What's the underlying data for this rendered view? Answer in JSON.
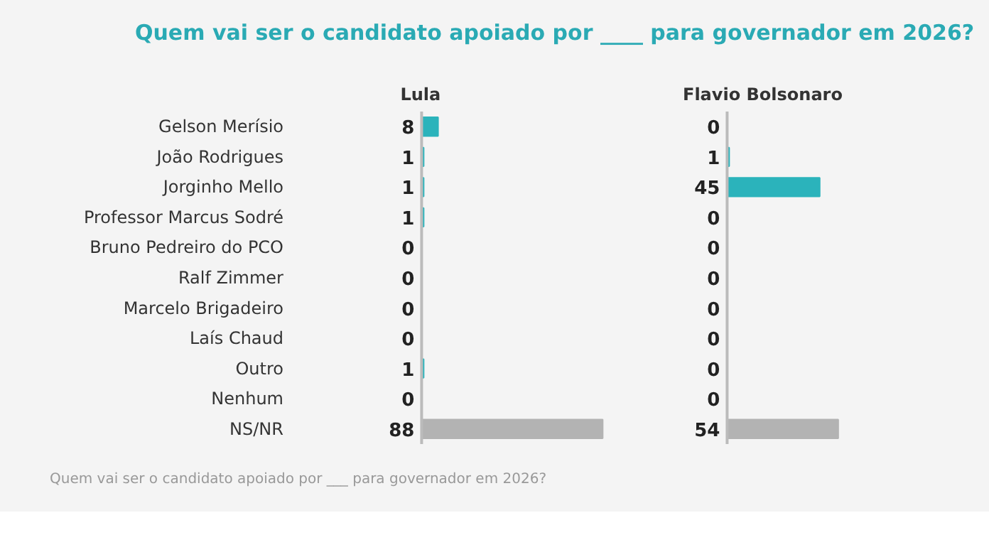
{
  "chart_data": [
    {
      "type": "bar",
      "orientation": "horizontal",
      "title": "Lula",
      "tick_labels": "y",
      "data_labels": true,
      "annotations": [
        "Quem vai ser o candidato apoiado por ____ para governador em 2026?",
        "Quem vai ser o candidato apoiado por ___ para governador em 2026?"
      ],
      "categories": [
        "Gelson Merísio",
        "João Rodrigues",
        "Jorginho Mello",
        "Professor Marcus Sodré",
        "Bruno Pedreiro do PCO",
        "Ralf Zimmer",
        "Marcelo Brigadeiro",
        "Laís Chaud",
        "Outro",
        "Nenhum",
        "NS/NR"
      ],
      "values": [
        8,
        1,
        1,
        1,
        0,
        0,
        0,
        0,
        1,
        0,
        88
      ],
      "colors": [
        "#2bb3bb",
        "#2bb3bb",
        "#2bb3bb",
        "#2bb3bb",
        "#2bb3bb",
        "#2bb3bb",
        "#2bb3bb",
        "#2bb3bb",
        "#2bb3bb",
        "#2bb3bb",
        "#b3b3b3"
      ]
    },
    {
      "type": "bar",
      "orientation": "horizontal",
      "title": "Flavio Bolsonaro",
      "tick_labels": false,
      "data_labels": true,
      "categories": [
        "Gelson Merísio",
        "João Rodrigues",
        "Jorginho Mello",
        "Professor Marcus Sodré",
        "Bruno Pedreiro do PCO",
        "Ralf Zimmer",
        "Marcelo Brigadeiro",
        "Laís Chaud",
        "Outro",
        "Nenhum",
        "NS/NR"
      ],
      "values": [
        0,
        1,
        45,
        0,
        0,
        0,
        0,
        0,
        0,
        0,
        54
      ],
      "colors": [
        "#2bb3bb",
        "#2bb3bb",
        "#2bb3bb",
        "#2bb3bb",
        "#2bb3bb",
        "#2bb3bb",
        "#2bb3bb",
        "#2bb3bb",
        "#2bb3bb",
        "#2bb3bb",
        "#b3b3b3"
      ]
    }
  ]
}
